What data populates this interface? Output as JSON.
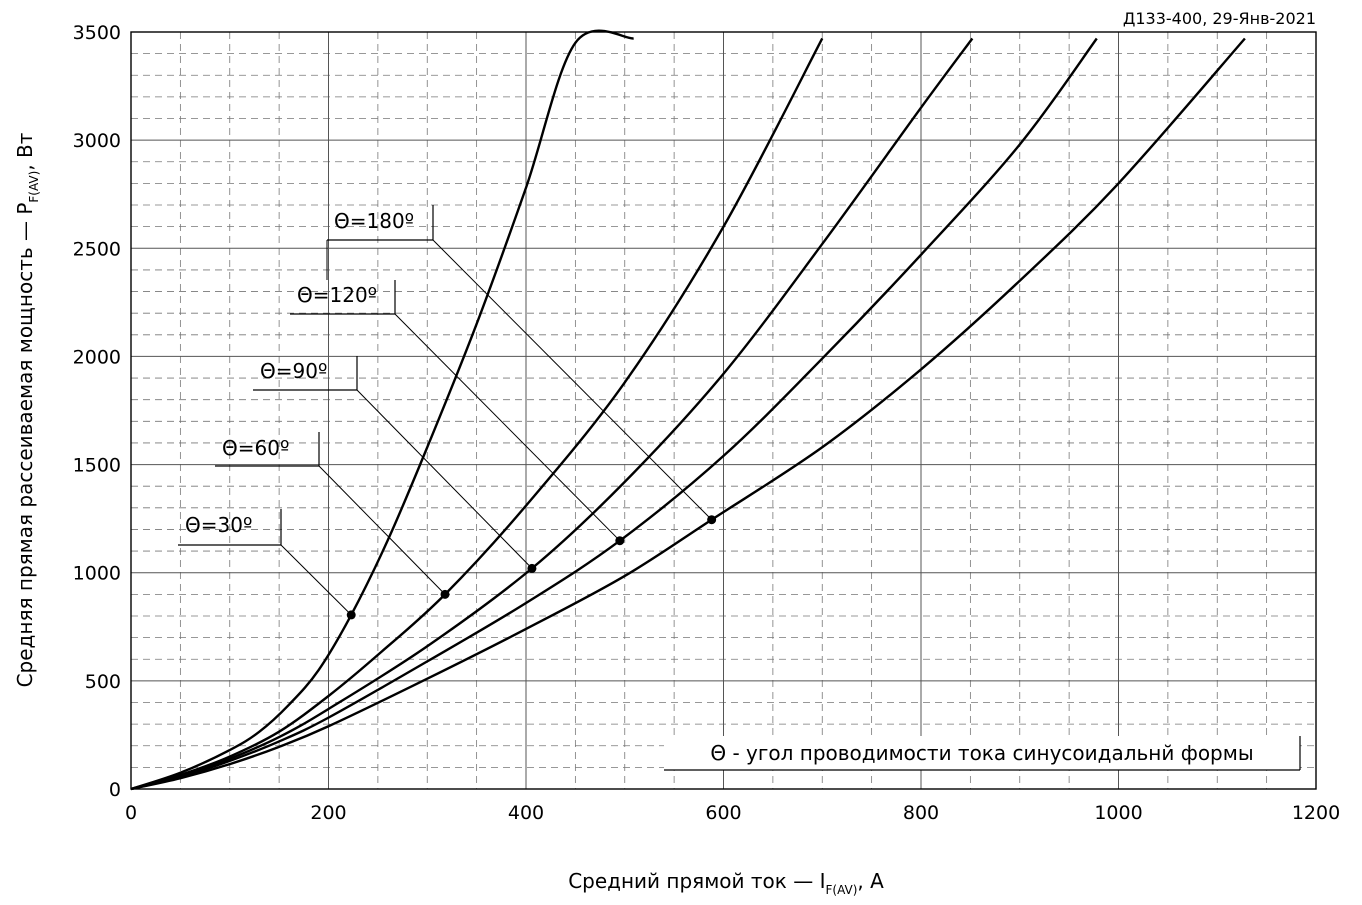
{
  "stamp": "Д133-400, 29-Янв-2021",
  "legend_note": "Θ - угол проводимости тока синусоидальнй формы",
  "chart_data": {
    "type": "line",
    "xlabel_main": "Средний прямой ток — I",
    "xlabel_sub": "F(AV)",
    "xlabel_end": ", A",
    "ylabel_main": "Средняя прямая рассеиваемая мощность — P",
    "ylabel_sub": "F(AV)",
    "ylabel_end": ", Вт",
    "xlim": [
      0,
      1200
    ],
    "ylim": [
      0,
      3500
    ],
    "x_ticks": [
      0,
      200,
      400,
      600,
      800,
      1000,
      1200
    ],
    "y_ticks": [
      0,
      500,
      1000,
      1500,
      2000,
      2500,
      3000,
      3500
    ],
    "grid": true,
    "series": [
      {
        "name": "Θ=30º",
        "marker": [
          223,
          805
        ],
        "points": [
          [
            0,
            0
          ],
          [
            50,
            75
          ],
          [
            100,
            180
          ],
          [
            130,
            265
          ],
          [
            160,
            390
          ],
          [
            190,
            550
          ],
          [
            223,
            805
          ],
          [
            260,
            1150
          ],
          [
            300,
            1580
          ],
          [
            350,
            2150
          ],
          [
            400,
            2780
          ],
          [
            450,
            3450
          ],
          [
            509,
            3470
          ]
        ]
      },
      {
        "name": "Θ=60º",
        "marker": [
          318,
          900
        ],
        "points": [
          [
            0,
            0
          ],
          [
            50,
            65
          ],
          [
            100,
            150
          ],
          [
            150,
            265
          ],
          [
            200,
            430
          ],
          [
            250,
            620
          ],
          [
            318,
            900
          ],
          [
            400,
            1310
          ],
          [
            500,
            1880
          ],
          [
            600,
            2600
          ],
          [
            700,
            3470
          ]
        ]
      },
      {
        "name": "Θ=90º",
        "marker": [
          406,
          1020
        ],
        "points": [
          [
            0,
            0
          ],
          [
            50,
            60
          ],
          [
            100,
            140
          ],
          [
            150,
            240
          ],
          [
            200,
            370
          ],
          [
            300,
            660
          ],
          [
            406,
            1020
          ],
          [
            500,
            1420
          ],
          [
            600,
            1920
          ],
          [
            700,
            2520
          ],
          [
            800,
            3150
          ],
          [
            852,
            3470
          ]
        ]
      },
      {
        "name": "Θ=120º",
        "marker": [
          495,
          1148
        ],
        "points": [
          [
            0,
            0
          ],
          [
            50,
            55
          ],
          [
            100,
            130
          ],
          [
            150,
            220
          ],
          [
            200,
            330
          ],
          [
            300,
            590
          ],
          [
            400,
            860
          ],
          [
            495,
            1148
          ],
          [
            600,
            1540
          ],
          [
            700,
            1990
          ],
          [
            800,
            2470
          ],
          [
            900,
            2980
          ],
          [
            978,
            3470
          ]
        ]
      },
      {
        "name": "Θ=180º",
        "marker": [
          588,
          1245
        ],
        "points": [
          [
            0,
            0
          ],
          [
            50,
            50
          ],
          [
            100,
            115
          ],
          [
            150,
            195
          ],
          [
            200,
            290
          ],
          [
            300,
            510
          ],
          [
            400,
            740
          ],
          [
            500,
            985
          ],
          [
            588,
            1245
          ],
          [
            700,
            1580
          ],
          [
            800,
            1940
          ],
          [
            900,
            2350
          ],
          [
            1000,
            2800
          ],
          [
            1128,
            3470
          ]
        ]
      }
    ],
    "labels": [
      {
        "text": "Θ=180º",
        "series": 4
      },
      {
        "text": "Θ=120º",
        "series": 3
      },
      {
        "text": "Θ=90º",
        "series": 2
      },
      {
        "text": "Θ=60º",
        "series": 1
      },
      {
        "text": "Θ=30º",
        "series": 0
      }
    ]
  }
}
